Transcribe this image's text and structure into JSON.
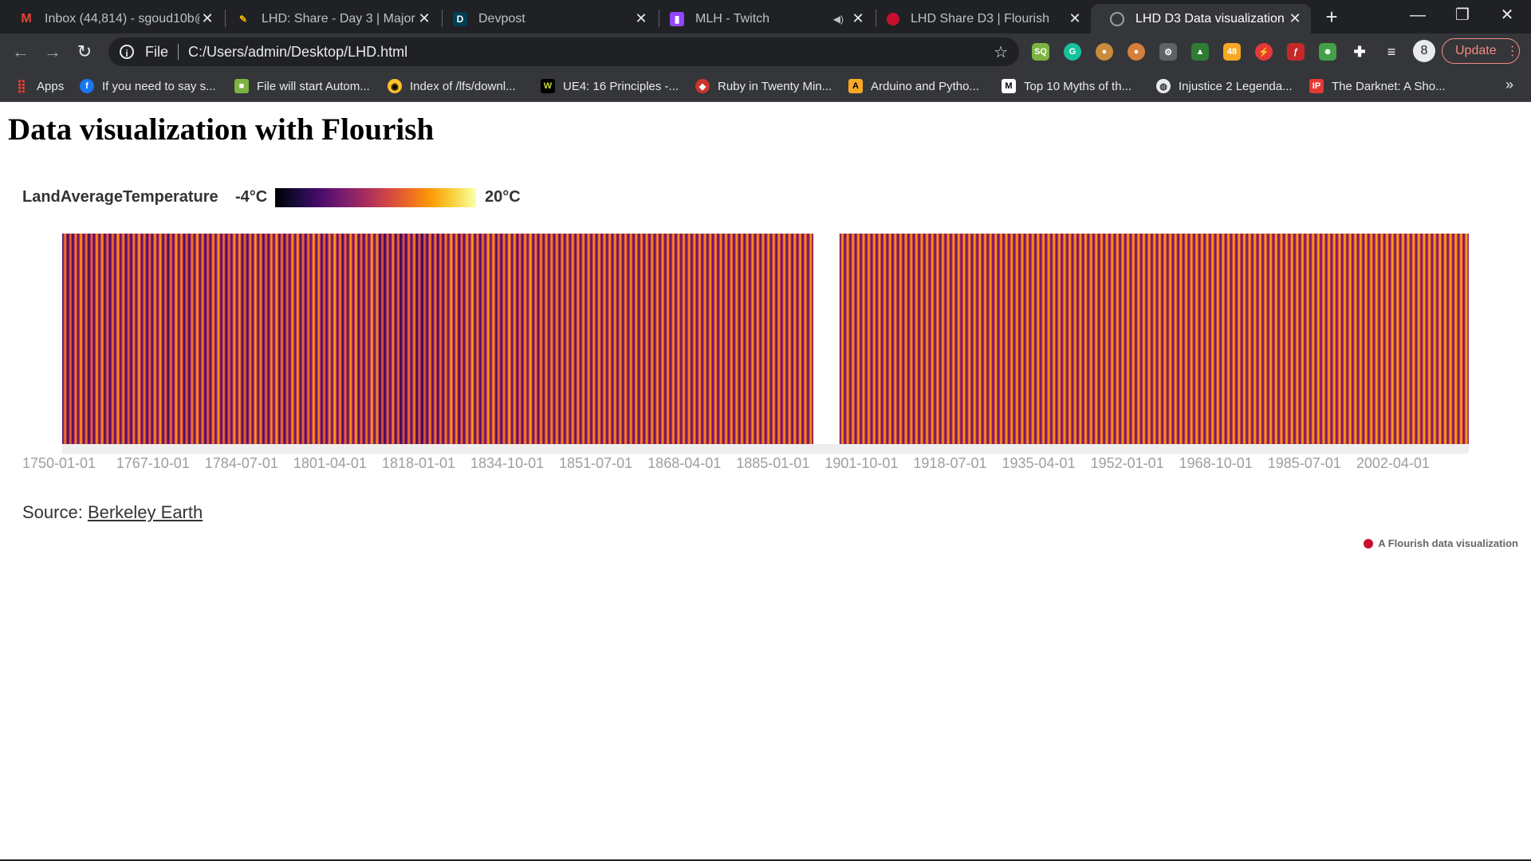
{
  "tabs": [
    {
      "title": "Inbox (44,814) - sgoud10b@",
      "icon": "gmail-icon"
    },
    {
      "title": "LHD: Share - Day 3 | Major Le",
      "icon": "lhd-icon"
    },
    {
      "title": "Devpost",
      "icon": "devpost-icon"
    },
    {
      "title": "MLH - Twitch",
      "icon": "twitch-icon"
    },
    {
      "title": "LHD Share D3 | Flourish",
      "icon": "flourish-icon"
    },
    {
      "title": "LHD D3 Data visualization",
      "icon": "globe-icon"
    }
  ],
  "address": {
    "scheme": "File",
    "path": "C:/Users/admin/Desktop/LHD.html"
  },
  "profile_initial": "8",
  "update_label": "Update",
  "bookmarks": {
    "apps_label": "Apps",
    "items": [
      "If you need to say s...",
      "File will start Autom...",
      "Index of /lfs/downl...",
      "UE4: 16 Principles -...",
      "Ruby in Twenty Min...",
      "Arduino and Pytho...",
      "Top 10 Myths of th...",
      "Injustice 2 Legenda...",
      "The Darknet: A Sho..."
    ]
  },
  "page": {
    "heading": "Data visualization with Flourish",
    "source_prefix": "Source: ",
    "source_link": "Berkeley Earth",
    "credit": "A Flourish data visualization"
  },
  "colors": {
    "scale": [
      "#000004",
      "#1b0c41",
      "#4a0c6b",
      "#781c6d",
      "#a52c60",
      "#cf4446",
      "#ed6925",
      "#fb9b06",
      "#f7d13d",
      "#fcffa4"
    ],
    "flourish_red": "#c8102e"
  },
  "chart_data": {
    "type": "heatmap",
    "metric": "LandAverageTemperature",
    "color_min_label": "-4°C",
    "color_max_label": "20°C",
    "color_range": [
      -4,
      20
    ],
    "x_start": "1750-01-01",
    "x_end": "2015-12-01",
    "x_ticks": [
      "1750-01-01",
      "1767-10-01",
      "1784-07-01",
      "1801-04-01",
      "1818-01-01",
      "1834-10-01",
      "1851-07-01",
      "1868-04-01",
      "1885-01-01",
      "1901-10-01",
      "1918-07-01",
      "1935-04-01",
      "1952-01-01",
      "1968-10-01",
      "1985-07-01",
      "2002-04-01"
    ],
    "missing_range": [
      "1892-01-01",
      "1897-01-01"
    ],
    "monthly_pattern": [
      2.5,
      3.5,
      5.5,
      8.5,
      11.5,
      13.5,
      14.5,
      14.0,
      12.0,
      9.0,
      6.0,
      3.5
    ]
  }
}
